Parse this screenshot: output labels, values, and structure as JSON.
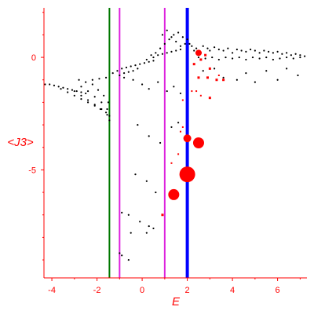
{
  "chart_data": {
    "type": "scatter",
    "title": "",
    "xlabel": "E",
    "ylabel": "<J3>",
    "xlim": [
      -4.35,
      7.3
    ],
    "ylim": [
      -9.8,
      2.2
    ],
    "x_ticks": [
      -4,
      -2,
      0,
      2,
      4,
      6
    ],
    "y_ticks": [
      0,
      -5
    ],
    "grid": false,
    "colors": {
      "axis": "#ff0000",
      "tick_labels": "#ff0000",
      "black_points": "#000000",
      "red_points": "#ff0000",
      "green_line": "#007700",
      "magenta_line": "#dd22dd",
      "blue_line": "#0000ff"
    },
    "vertical_lines": [
      {
        "x": -1.45,
        "color": "#007700"
      },
      {
        "x": -1.0,
        "color": "#dd22dd"
      },
      {
        "x": 1.0,
        "color": "#dd22dd"
      },
      {
        "x": 2.0,
        "color": "#0000ff"
      }
    ],
    "series": [
      {
        "color": "#000000",
        "points": [
          [
            -4.3,
            -1.2
          ],
          [
            -4.1,
            -1.2
          ],
          [
            -3.9,
            -1.25
          ],
          [
            -3.7,
            -1.3
          ],
          [
            -3.5,
            -1.35
          ],
          [
            -3.3,
            -1.4
          ],
          [
            -3.1,
            -1.45
          ],
          [
            -2.9,
            -1.5
          ],
          [
            -2.7,
            -1.55
          ],
          [
            -2.5,
            -1.6
          ],
          [
            -3.6,
            -1.4
          ],
          [
            -3.3,
            -1.55
          ],
          [
            -3.0,
            -1.7
          ],
          [
            -2.7,
            -1.85
          ],
          [
            -2.4,
            -2.0
          ],
          [
            -2.1,
            -2.15
          ],
          [
            -1.85,
            -2.3
          ],
          [
            -1.6,
            -2.45
          ],
          [
            -1.45,
            -2.6
          ],
          [
            -3.0,
            -1.5
          ],
          [
            -2.7,
            -1.7
          ],
          [
            -2.4,
            -1.9
          ],
          [
            -2.1,
            -2.1
          ],
          [
            -1.8,
            -2.3
          ],
          [
            -1.55,
            -2.55
          ],
          [
            -2.7,
            -1.3
          ],
          [
            -2.4,
            -1.5
          ],
          [
            -2.1,
            -1.75
          ],
          [
            -1.8,
            -2.0
          ],
          [
            -1.55,
            -2.3
          ],
          [
            -1.45,
            -2.8
          ],
          [
            -2.2,
            -1.2
          ],
          [
            -1.95,
            -1.45
          ],
          [
            -1.7,
            -1.7
          ],
          [
            -1.5,
            -2.0
          ],
          [
            -2.8,
            -1.0
          ],
          [
            -2.5,
            -1.1
          ],
          [
            -2.2,
            -1.0
          ],
          [
            -1.9,
            -0.95
          ],
          [
            -1.6,
            -0.9
          ],
          [
            -1.3,
            -0.7
          ],
          [
            -1.1,
            -0.6
          ],
          [
            -0.9,
            -0.5
          ],
          [
            -0.7,
            -0.45
          ],
          [
            -0.5,
            -0.4
          ],
          [
            -0.3,
            -0.35
          ],
          [
            -0.1,
            -0.3
          ],
          [
            0.1,
            -0.25
          ],
          [
            0.3,
            -0.2
          ],
          [
            0.5,
            -0.15
          ],
          [
            -1.0,
            -0.8
          ],
          [
            -0.8,
            -0.7
          ],
          [
            -0.6,
            -0.65
          ],
          [
            -0.4,
            -0.6
          ],
          [
            -0.2,
            -0.5
          ],
          [
            0.2,
            -0.1
          ],
          [
            0.4,
            0.1
          ],
          [
            0.6,
            0.2
          ],
          [
            0.8,
            0.4
          ],
          [
            1.0,
            0.6
          ],
          [
            1.2,
            0.8
          ],
          [
            1.4,
            1.0
          ],
          [
            1.6,
            1.1
          ],
          [
            1.8,
            0.9
          ],
          [
            2.0,
            0.8
          ],
          [
            0.9,
            1.0
          ],
          [
            1.1,
            1.2
          ],
          [
            1.3,
            0.9
          ],
          [
            1.5,
            0.7
          ],
          [
            1.7,
            0.5
          ],
          [
            1.9,
            0.6
          ],
          [
            0.5,
            0.0
          ],
          [
            0.7,
            0.1
          ],
          [
            0.9,
            0.15
          ],
          [
            1.1,
            0.2
          ],
          [
            1.3,
            0.25
          ],
          [
            1.5,
            0.3
          ],
          [
            1.7,
            0.35
          ],
          [
            2.1,
            0.6
          ],
          [
            2.2,
            0.5
          ],
          [
            2.3,
            0.3
          ],
          [
            2.4,
            0.4
          ],
          [
            2.6,
            0.2
          ],
          [
            2.7,
            0.5
          ],
          [
            2.9,
            0.4
          ],
          [
            3.0,
            0.3
          ],
          [
            3.2,
            0.45
          ],
          [
            3.4,
            0.35
          ],
          [
            3.6,
            0.3
          ],
          [
            3.8,
            0.4
          ],
          [
            4.0,
            0.2
          ],
          [
            4.2,
            0.35
          ],
          [
            4.4,
            0.3
          ],
          [
            4.6,
            0.25
          ],
          [
            4.8,
            0.35
          ],
          [
            5.0,
            0.3
          ],
          [
            5.2,
            0.2
          ],
          [
            5.4,
            0.3
          ],
          [
            5.6,
            0.25
          ],
          [
            5.8,
            0.2
          ],
          [
            6.0,
            0.25
          ],
          [
            6.2,
            0.15
          ],
          [
            6.4,
            0.2
          ],
          [
            6.6,
            0.1
          ],
          [
            6.8,
            0.15
          ],
          [
            7.0,
            0.1
          ],
          [
            7.2,
            0.05
          ],
          [
            2.5,
            0.0
          ],
          [
            2.8,
            -0.05
          ],
          [
            3.1,
            0.0
          ],
          [
            3.4,
            -0.1
          ],
          [
            3.7,
            0.0
          ],
          [
            4.0,
            -0.05
          ],
          [
            4.3,
            0.0
          ],
          [
            4.6,
            -0.1
          ],
          [
            4.9,
            0.0
          ],
          [
            5.2,
            -0.05
          ],
          [
            5.5,
            0.0
          ],
          [
            5.8,
            -0.1
          ],
          [
            6.1,
            -0.05
          ],
          [
            6.4,
            0.0
          ],
          [
            6.7,
            -0.05
          ],
          [
            7.0,
            0.0
          ],
          [
            2.7,
            -0.6
          ],
          [
            3.2,
            -0.5
          ],
          [
            3.6,
            -0.9
          ],
          [
            4.2,
            -1.0
          ],
          [
            4.6,
            -0.7
          ],
          [
            5.0,
            -1.1
          ],
          [
            5.5,
            -0.6
          ],
          [
            6.0,
            -1.0
          ],
          [
            6.4,
            -0.5
          ],
          [
            6.9,
            -0.8
          ],
          [
            -0.8,
            -0.9
          ],
          [
            -0.4,
            -1.0
          ],
          [
            0.0,
            -1.2
          ],
          [
            0.3,
            -1.4
          ],
          [
            0.7,
            -1.1
          ],
          [
            1.1,
            -1.5
          ],
          [
            1.4,
            -1.3
          ],
          [
            1.7,
            -1.6
          ],
          [
            -0.2,
            -3.0
          ],
          [
            0.3,
            -3.5
          ],
          [
            0.8,
            -3.8
          ],
          [
            1.3,
            -3.1
          ],
          [
            1.6,
            -2.9
          ],
          [
            -0.3,
            -5.2
          ],
          [
            0.2,
            -5.5
          ],
          [
            0.6,
            -6.0
          ],
          [
            -0.1,
            -7.3
          ],
          [
            0.3,
            -7.5
          ],
          [
            -0.6,
            -7.0
          ],
          [
            -0.9,
            -6.9
          ],
          [
            0.5,
            -7.6
          ],
          [
            -0.5,
            -7.8
          ],
          [
            0.2,
            -7.8
          ],
          [
            -0.9,
            -8.8
          ],
          [
            -1.0,
            -8.7
          ],
          [
            -0.6,
            -9.0
          ]
        ]
      },
      {
        "color": "#ff0000",
        "points": [
          [
            2.5,
            0.2
          ],
          [
            2.3,
            -0.3
          ],
          [
            2.6,
            -0.1
          ],
          [
            2.8,
            0.1
          ],
          [
            3.0,
            -0.5
          ],
          [
            2.9,
            -0.9
          ],
          [
            3.3,
            -1.0
          ],
          [
            3.4,
            -0.8
          ],
          [
            3.6,
            -1.0
          ],
          [
            2.5,
            -0.9
          ],
          [
            2.2,
            -1.5
          ],
          [
            2.4,
            -1.5
          ],
          [
            2.6,
            -1.7
          ],
          [
            3.0,
            -1.8
          ],
          [
            1.8,
            -1.9
          ],
          [
            1.7,
            -3.3
          ],
          [
            1.8,
            -3.1
          ],
          [
            1.6,
            -4.3
          ],
          [
            1.3,
            -4.7
          ],
          [
            0.9,
            -7.0
          ],
          [
            2.0,
            -3.6
          ],
          [
            2.5,
            -3.8
          ],
          [
            1.4,
            -6.1
          ],
          [
            2.0,
            -5.2
          ]
        ],
        "sizes": [
          4,
          3,
          3,
          3,
          3,
          3,
          3,
          2,
          3,
          3,
          2,
          2,
          2,
          3,
          2,
          2,
          2,
          2,
          2,
          3,
          5,
          7,
          7,
          10
        ]
      }
    ]
  }
}
